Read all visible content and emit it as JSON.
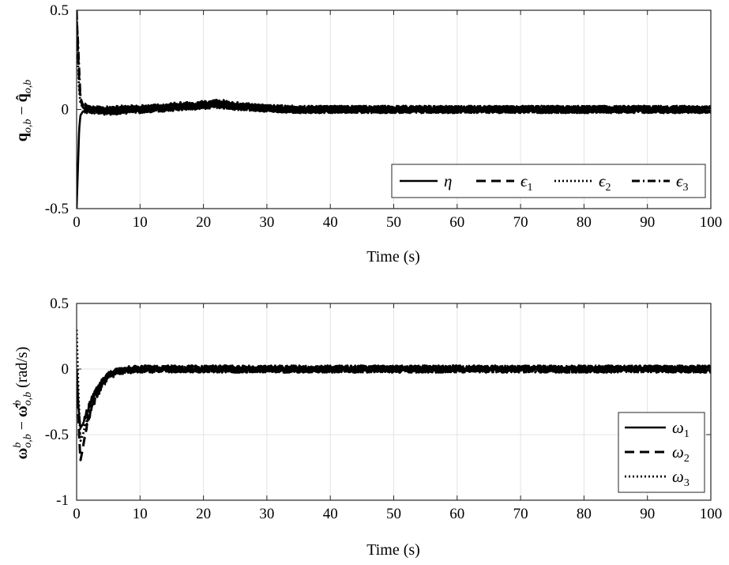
{
  "chart_data": [
    {
      "type": "line",
      "xlabel": "Time (s)",
      "ylabel": "q_{o,b} − q̂_{o,b}",
      "ylabel_main": "q",
      "ylabel_sub": "o,b",
      "ylabel_minus": " − ",
      "ylabel_hat": "q̂",
      "xlim": [
        0,
        100
      ],
      "ylim": [
        -0.5,
        0.5
      ],
      "xticks": [
        "0",
        "10",
        "20",
        "30",
        "40",
        "50",
        "60",
        "70",
        "80",
        "90",
        "100"
      ],
      "yticks": [
        "-0.5",
        "0",
        "0.5"
      ],
      "grid": true,
      "legend_position": "bottom-right",
      "legend_layout": "horizontal",
      "series": [
        {
          "name": "η",
          "name_main": "η",
          "name_sub": "",
          "style": "solid",
          "x": [
            0,
            0.2,
            0.4,
            0.6,
            1,
            2,
            5,
            10,
            15,
            20,
            22,
            25,
            30,
            35,
            40,
            50,
            60,
            70,
            80,
            90,
            100
          ],
          "y": [
            -0.5,
            -0.3,
            -0.1,
            -0.03,
            -0.01,
            -0.005,
            0,
            0.005,
            0.01,
            0.02,
            0.025,
            0.015,
            0.005,
            0,
            0,
            0,
            0,
            0,
            0,
            0,
            0
          ]
        },
        {
          "name": "ϵ1",
          "name_main": "ϵ",
          "name_sub": "1",
          "style": "dashed",
          "x": [
            0,
            0.2,
            0.4,
            0.6,
            1,
            2,
            5,
            10,
            15,
            20,
            22,
            25,
            30,
            35,
            40,
            50,
            60,
            70,
            80,
            90,
            100
          ],
          "y": [
            0.5,
            0.3,
            0.15,
            0.05,
            0.01,
            0,
            -0.005,
            0,
            0.01,
            0.02,
            0.03,
            0.02,
            0.005,
            0,
            0,
            0,
            0,
            0,
            0,
            0,
            0
          ]
        },
        {
          "name": "ϵ2",
          "name_main": "ϵ",
          "name_sub": "2",
          "style": "dotted",
          "x": [
            0,
            0.2,
            0.4,
            0.6,
            1,
            2,
            5,
            10,
            15,
            20,
            22,
            25,
            30,
            35,
            40,
            50,
            60,
            70,
            80,
            90,
            100
          ],
          "y": [
            0.48,
            0.25,
            0.1,
            0.03,
            0.01,
            0,
            -0.01,
            0,
            0.01,
            0.02,
            0.025,
            0.015,
            0.005,
            0,
            0,
            0,
            0,
            0,
            0,
            0,
            0
          ]
        },
        {
          "name": "ϵ3",
          "name_main": "ϵ",
          "name_sub": "3",
          "style": "dashdot",
          "x": [
            0,
            0.2,
            0.4,
            0.6,
            1,
            2,
            5,
            10,
            15,
            20,
            22,
            25,
            30,
            35,
            40,
            50,
            60,
            70,
            80,
            90,
            100
          ],
          "y": [
            0.45,
            0.35,
            0.2,
            0.06,
            0.02,
            0,
            -0.01,
            0,
            0.015,
            0.025,
            0.035,
            0.02,
            0.005,
            0,
            0,
            0,
            0,
            0,
            0,
            0,
            0
          ]
        }
      ]
    },
    {
      "type": "line",
      "xlabel": "Time (s)",
      "ylabel": "ω^b_{o,b} − ω̂^b_{o,b} (rad/s)",
      "ylabel_main": "ω",
      "ylabel_sup": "b",
      "ylabel_sub": "o,b",
      "ylabel_minus": " − ",
      "ylabel_hat": "ω̂",
      "ylabel_unit": " (rad/s)",
      "xlim": [
        0,
        100
      ],
      "ylim": [
        -1,
        0.5
      ],
      "xticks": [
        "0",
        "10",
        "20",
        "30",
        "40",
        "50",
        "60",
        "70",
        "80",
        "90",
        "100"
      ],
      "yticks": [
        "-1",
        "-0.5",
        "0",
        "0.5"
      ],
      "grid": true,
      "legend_position": "bottom-right",
      "legend_layout": "vertical",
      "series": [
        {
          "name": "ω1",
          "name_main": "ω",
          "name_sub": "1",
          "style": "solid",
          "x": [
            0,
            0.3,
            0.6,
            1,
            1.5,
            2,
            3,
            4,
            5,
            6,
            8,
            10,
            20,
            30,
            40,
            50,
            60,
            70,
            80,
            90,
            100
          ],
          "y": [
            0,
            -0.3,
            -0.45,
            -0.42,
            -0.35,
            -0.28,
            -0.17,
            -0.1,
            -0.05,
            -0.02,
            -0.005,
            0,
            0,
            0,
            0,
            0,
            0,
            0,
            0,
            0,
            0
          ]
        },
        {
          "name": "ω2",
          "name_main": "ω",
          "name_sub": "2",
          "style": "dashed",
          "x": [
            0,
            0.3,
            0.6,
            1,
            1.5,
            2,
            3,
            4,
            5,
            6,
            8,
            10,
            20,
            30,
            40,
            50,
            60,
            70,
            80,
            90,
            100
          ],
          "y": [
            0,
            -0.4,
            -0.7,
            -0.6,
            -0.45,
            -0.35,
            -0.22,
            -0.12,
            -0.06,
            -0.03,
            -0.01,
            0,
            0,
            0,
            0,
            0,
            0,
            0,
            0,
            0,
            0
          ]
        },
        {
          "name": "ω3",
          "name_main": "ω",
          "name_sub": "3",
          "style": "dotted",
          "x": [
            0,
            0.3,
            0.6,
            1,
            1.5,
            2,
            3,
            4,
            5,
            6,
            8,
            10,
            20,
            30,
            40,
            50,
            60,
            70,
            80,
            90,
            100
          ],
          "y": [
            0.3,
            -0.2,
            -0.55,
            -0.5,
            -0.4,
            -0.3,
            -0.18,
            -0.1,
            -0.05,
            -0.02,
            -0.005,
            0,
            0,
            0,
            0,
            0,
            0,
            0,
            0,
            0,
            0
          ]
        }
      ]
    }
  ]
}
